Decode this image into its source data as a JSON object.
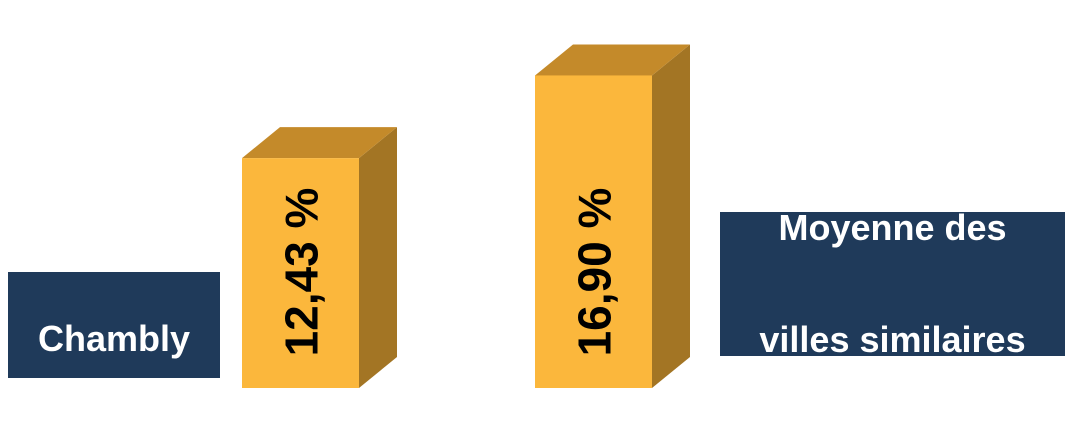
{
  "chart_data": {
    "type": "bar",
    "categories": [
      "Chambly",
      "Moyenne des villes similaires"
    ],
    "values": [
      12.43,
      16.9
    ],
    "value_labels": [
      "12,43 %",
      "16,90 %"
    ],
    "title": "",
    "xlabel": "",
    "ylabel": "",
    "ylim": [
      0,
      18.6
    ],
    "grid": false,
    "legend": "none",
    "style": "3d-column"
  },
  "labels": {
    "left": "Chambly",
    "right_line1": "Moyenne des",
    "right_line2": "villes similaires"
  },
  "colors": {
    "bar_front": "#fbb73c",
    "bar_top": "#c48a2a",
    "bar_side": "#a37524",
    "label_bg": "#1f3a5a",
    "label_text": "#ffffff",
    "value_text": "#000000"
  }
}
